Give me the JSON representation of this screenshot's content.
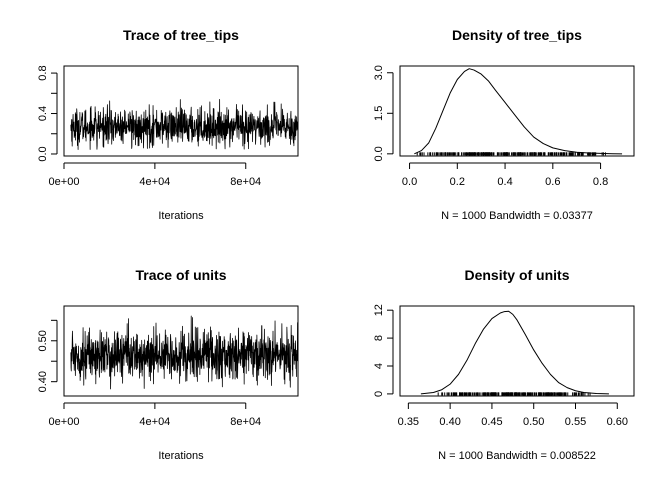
{
  "figure": {
    "panels": [
      "trace_tree_tips",
      "density_tree_tips",
      "trace_units",
      "density_units"
    ]
  },
  "chart_data": [
    {
      "id": "trace_tree_tips",
      "type": "line",
      "title": "Trace of tree_tips",
      "xlabel": "Iterations",
      "ylabel": "",
      "x_ticks": [
        0,
        40000,
        80000
      ],
      "x_tick_labels": [
        "0e+00",
        "4e+04",
        "8e+04"
      ],
      "y_ticks": [
        0.0,
        0.2,
        0.4,
        0.6,
        0.8
      ],
      "y_tick_labels": [
        "0.0",
        "",
        "0.4",
        "",
        "0.8"
      ],
      "xlim": [
        0,
        103000
      ],
      "ylim": [
        -0.02,
        0.87
      ],
      "x_range": [
        3000,
        102900
      ],
      "n_iterations": 1000,
      "center": 0.27,
      "spread": 0.09,
      "min_value": 0.04,
      "max_value": 0.85,
      "line_color": "#000000"
    },
    {
      "id": "density_tree_tips",
      "type": "line",
      "title": "Density of tree_tips",
      "xlabel": "N = 1000   Bandwidth = 0.03377",
      "ylabel": "",
      "x_ticks": [
        0.0,
        0.2,
        0.4,
        0.6,
        0.8
      ],
      "x_tick_labels": [
        "0.0",
        "0.2",
        "0.4",
        "0.6",
        "0.8"
      ],
      "y_ticks": [
        0.0,
        1.5,
        3.0
      ],
      "y_tick_labels": [
        "0.0",
        "1.5",
        "3.0"
      ],
      "xlim": [
        -0.04,
        0.94
      ],
      "ylim": [
        -0.08,
        3.25
      ],
      "x": [
        0.02,
        0.05,
        0.08,
        0.11,
        0.14,
        0.17,
        0.2,
        0.23,
        0.25,
        0.27,
        0.3,
        0.33,
        0.36,
        0.4,
        0.44,
        0.48,
        0.52,
        0.56,
        0.6,
        0.65,
        0.7,
        0.75,
        0.8,
        0.85,
        0.89
      ],
      "y": [
        0.0,
        0.12,
        0.4,
        0.95,
        1.6,
        2.25,
        2.75,
        3.05,
        3.15,
        3.1,
        2.95,
        2.7,
        2.35,
        1.9,
        1.45,
        1.0,
        0.62,
        0.38,
        0.22,
        0.12,
        0.06,
        0.03,
        0.015,
        0.005,
        0.0
      ],
      "rug_range": [
        0.02,
        0.84
      ],
      "line_color": "#000000"
    },
    {
      "id": "trace_units",
      "type": "line",
      "title": "Trace of units",
      "xlabel": "Iterations",
      "ylabel": "",
      "x_ticks": [
        0,
        40000,
        80000
      ],
      "x_tick_labels": [
        "0e+00",
        "4e+04",
        "8e+04"
      ],
      "y_ticks": [
        0.4,
        0.45,
        0.5,
        0.55
      ],
      "y_tick_labels": [
        "0.40",
        "",
        "0.50",
        ""
      ],
      "xlim": [
        0,
        103000
      ],
      "ylim": [
        0.365,
        0.585
      ],
      "x_range": [
        3000,
        102900
      ],
      "n_iterations": 1000,
      "center": 0.465,
      "spread": 0.03,
      "min_value": 0.38,
      "max_value": 0.578,
      "line_color": "#000000"
    },
    {
      "id": "density_units",
      "type": "line",
      "title": "Density of units",
      "xlabel": "N = 1000   Bandwidth = 0.008522",
      "ylabel": "",
      "x_ticks": [
        0.35,
        0.4,
        0.45,
        0.5,
        0.55,
        0.6
      ],
      "x_tick_labels": [
        "0.35",
        "0.40",
        "0.45",
        "0.50",
        "0.55",
        "0.60"
      ],
      "y_ticks": [
        0,
        4,
        8,
        12
      ],
      "y_tick_labels": [
        "0",
        "4",
        "8",
        "12"
      ],
      "xlim": [
        0.34,
        0.62
      ],
      "ylim": [
        -0.3,
        12.6
      ],
      "x": [
        0.365,
        0.38,
        0.39,
        0.4,
        0.41,
        0.42,
        0.43,
        0.44,
        0.45,
        0.46,
        0.465,
        0.47,
        0.475,
        0.48,
        0.49,
        0.5,
        0.51,
        0.52,
        0.53,
        0.54,
        0.55,
        0.56,
        0.575,
        0.59
      ],
      "y": [
        0.0,
        0.2,
        0.6,
        1.4,
        2.8,
        4.8,
        7.2,
        9.3,
        10.8,
        11.6,
        11.8,
        11.85,
        11.4,
        10.6,
        8.5,
        6.3,
        4.4,
        2.8,
        1.6,
        0.9,
        0.45,
        0.2,
        0.05,
        0.0
      ],
      "rug_range": [
        0.38,
        0.575
      ],
      "line_color": "#000000"
    }
  ]
}
